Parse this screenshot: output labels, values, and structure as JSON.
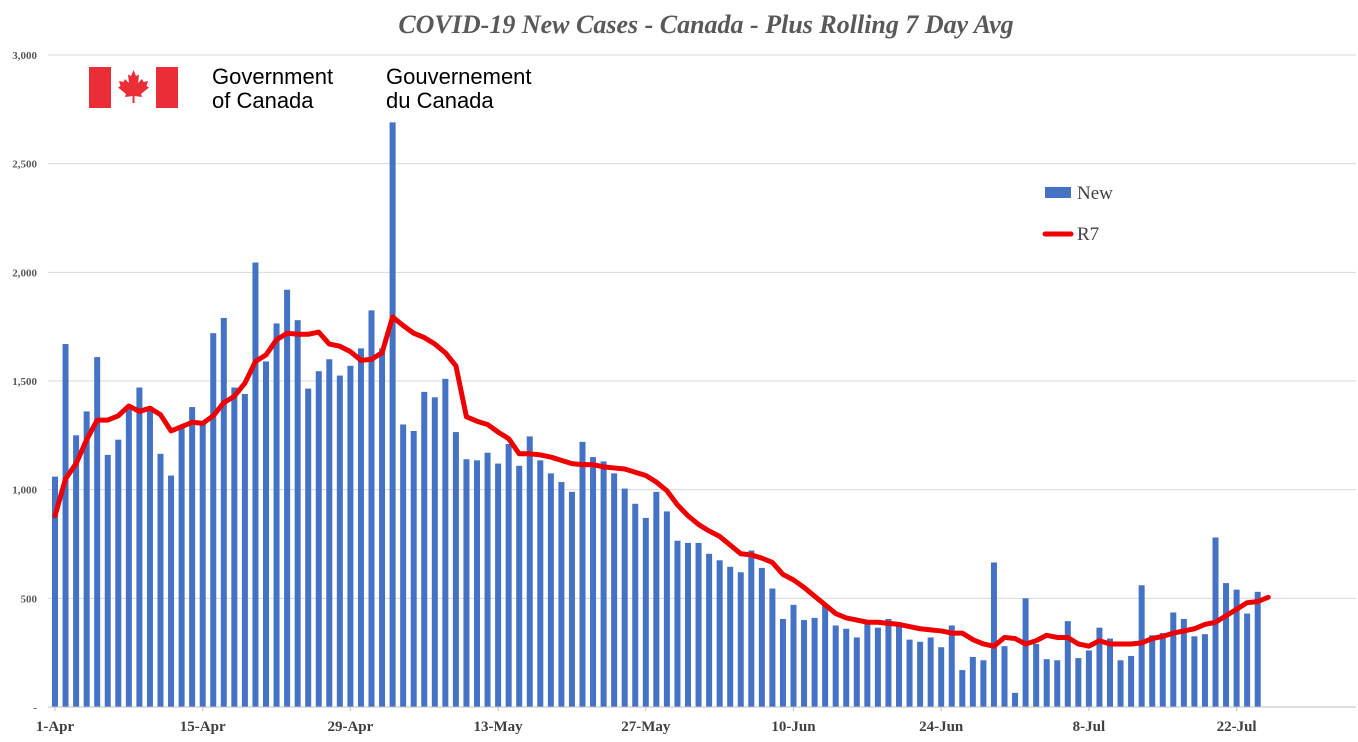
{
  "chart_data": {
    "type": "bar",
    "title": "COVID-19 New Cases - Canada - Plus Rolling 7 Day Avg",
    "xlabel": "",
    "ylabel": "",
    "ylim": [
      0,
      3000
    ],
    "ytick_values": [
      0,
      500,
      1000,
      1500,
      2000,
      2500,
      3000
    ],
    "ytick_labels": [
      "-",
      "500",
      "1,000",
      "1,500",
      "2,000",
      "2,500",
      "3,000"
    ],
    "xtick_labels": [
      {
        "label": "1-Apr",
        "day_index": 0
      },
      {
        "label": "15-Apr",
        "day_index": 14
      },
      {
        "label": "29-Apr",
        "day_index": 28
      },
      {
        "label": "13-May",
        "day_index": 42
      },
      {
        "label": "27-May",
        "day_index": 56
      },
      {
        "label": "10-Jun",
        "day_index": 70
      },
      {
        "label": "24-Jun",
        "day_index": 84
      },
      {
        "label": "8-Jul",
        "day_index": 98
      },
      {
        "label": "22-Jul",
        "day_index": 112
      }
    ],
    "x_start": "1-Apr",
    "num_days": 116,
    "series": [
      {
        "name": "New",
        "type": "bar",
        "color": "#4472C4",
        "values": [
          1060,
          1670,
          1250,
          1360,
          1610,
          1160,
          1230,
          1370,
          1470,
          1380,
          1165,
          1065,
          1290,
          1380,
          1310,
          1720,
          1790,
          1470,
          1440,
          2045,
          1590,
          1765,
          1920,
          1780,
          1465,
          1545,
          1600,
          1525,
          1570,
          1650,
          1825,
          1650,
          2690,
          1300,
          1270,
          1450,
          1425,
          1510,
          1265,
          1140,
          1135,
          1170,
          1120,
          1210,
          1110,
          1245,
          1135,
          1075,
          1035,
          990,
          1220,
          1150,
          1130,
          1075,
          1005,
          935,
          870,
          990,
          900,
          765,
          755,
          755,
          705,
          675,
          645,
          620,
          720,
          640,
          545,
          405,
          470,
          400,
          410,
          470,
          375,
          360,
          320,
          385,
          365,
          405,
          390,
          310,
          300,
          320,
          275,
          375,
          170,
          230,
          215,
          665,
          280,
          65,
          500,
          290,
          220,
          215,
          395,
          225,
          260,
          365,
          315,
          215,
          235,
          560,
          330,
          340,
          435,
          405,
          325,
          335,
          780,
          570,
          540,
          430,
          530
        ]
      },
      {
        "name": "R7",
        "type": "line",
        "color": "#EE0000",
        "values": [
          880,
          1050,
          1120,
          1230,
          1320,
          1320,
          1340,
          1385,
          1360,
          1375,
          1345,
          1270,
          1290,
          1310,
          1305,
          1340,
          1400,
          1430,
          1490,
          1590,
          1620,
          1690,
          1720,
          1715,
          1715,
          1725,
          1670,
          1660,
          1635,
          1595,
          1600,
          1630,
          1795,
          1755,
          1720,
          1700,
          1670,
          1630,
          1570,
          1335,
          1315,
          1300,
          1265,
          1235,
          1165,
          1165,
          1160,
          1150,
          1135,
          1120,
          1115,
          1115,
          1105,
          1100,
          1095,
          1080,
          1065,
          1035,
          995,
          930,
          880,
          840,
          810,
          785,
          745,
          705,
          700,
          685,
          665,
          610,
          585,
          550,
          510,
          470,
          430,
          410,
          400,
          390,
          390,
          385,
          380,
          370,
          360,
          355,
          350,
          340,
          340,
          310,
          290,
          280,
          320,
          315,
          290,
          305,
          330,
          320,
          320,
          290,
          280,
          305,
          290,
          290,
          290,
          295,
          315,
          325,
          340,
          350,
          360,
          380,
          390,
          420,
          450,
          480,
          485,
          505
        ]
      }
    ],
    "legend": {
      "position": "right",
      "items": [
        "New",
        "R7"
      ]
    }
  },
  "logo": {
    "english_line1": "Government",
    "english_line2": "of Canada",
    "french_line1": "Gouvernement",
    "french_line2": "du Canada",
    "flag_red": "#EB2D37"
  }
}
